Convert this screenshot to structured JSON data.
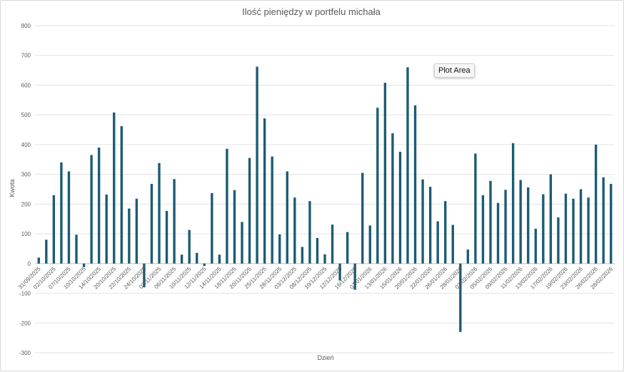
{
  "chart_data": {
    "type": "bar",
    "title": "Ilość pieniędzy w portfelu michała",
    "xlabel": "Dzień",
    "ylabel": "Kwota",
    "ylim": [
      -300,
      800
    ],
    "yticks": [
      -300,
      -200,
      -100,
      0,
      100,
      200,
      300,
      400,
      500,
      600,
      700,
      800
    ],
    "grid": true,
    "legend": "none",
    "bar_color": "#1b5c73",
    "values": [
      20,
      80,
      230,
      340,
      310,
      97,
      -12,
      365,
      390,
      232,
      508,
      462,
      185,
      218,
      -80,
      268,
      338,
      177,
      284,
      30,
      113,
      36,
      -8,
      237,
      30,
      386,
      247,
      140,
      355,
      662,
      488,
      360,
      98,
      310,
      222,
      56,
      210,
      86,
      31,
      131,
      -57,
      106,
      -88,
      305,
      128,
      524,
      608,
      438,
      376,
      660,
      532,
      283,
      258,
      142,
      210,
      130,
      -230,
      47,
      370,
      230,
      278,
      204,
      248,
      405,
      281,
      256,
      117,
      233,
      300,
      155,
      235,
      218,
      250,
      222,
      400,
      290,
      268
    ],
    "tick_labels": [
      "31/09/2025",
      "02/10/2025",
      "07/10/2025",
      "10/10/2025",
      "14/10/2025",
      "20/10/2025",
      "22/10/2025",
      "24/10/2025",
      "03/11/2025",
      "06/11/2025",
      "10/11/2025",
      "12/11/2025",
      "14/11/2025",
      "18/11/2025",
      "20/11/2025",
      "25/11/2025",
      "28/11/2025",
      "03/12/2025",
      "08/12/2025",
      "10/12/2025",
      "12/12/2025",
      "16/12/2025",
      "07/01/2026",
      "13/01/2026",
      "15/01/2026",
      "20/01/2026",
      "22/01/2026",
      "26/01/2026",
      "28/01/2026",
      "03/02/2026",
      "05/02/2026",
      "09/02/2026",
      "11/02/2026",
      "13/02/2026",
      "17/02/2026",
      "19/02/2026",
      "23/02/2026",
      "26/02/2026",
      "28/02/2026"
    ]
  },
  "tooltip": {
    "text": "Plot Area"
  }
}
